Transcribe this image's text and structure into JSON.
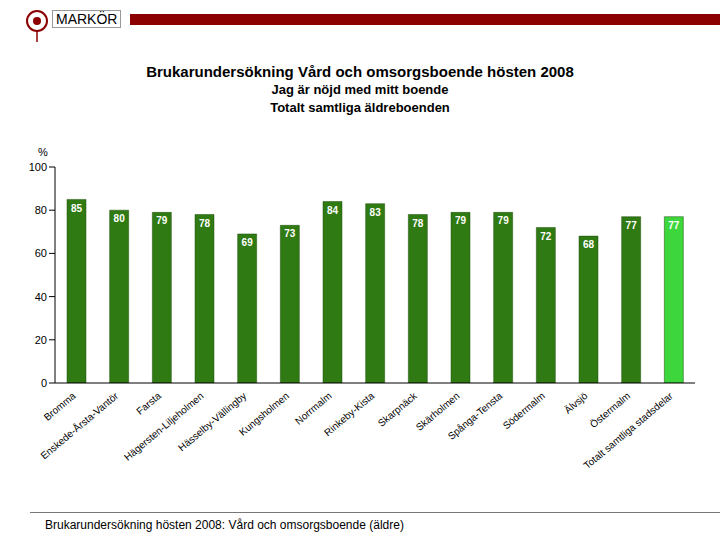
{
  "header": {
    "logo": "MARKÖR"
  },
  "footer": "Brukarundersökning hösten 2008: Vård och omsorgsboende (äldre)",
  "chart_data": {
    "type": "bar",
    "title": "Brukarundersökning Vård och omsorgsboende hösten 2008",
    "subtitle": [
      "Jag är nöjd med mitt boende",
      "Totalt samtliga äldreboenden"
    ],
    "y_label": "%",
    "categories": [
      "Bromma",
      "Enskede-Årsta-Vantör",
      "Farsta",
      "Hägersten-Liljeholmen",
      "Hässelby-Vällingby",
      "Kungsholmen",
      "Norrmalm",
      "Rinkeby-Kista",
      "Skarpnäck",
      "Skärholmen",
      "Spånga-Tensta",
      "Södermalm",
      "Älvsjö",
      "Östermalm",
      "Totalt samtliga stadsdelar"
    ],
    "values": [
      85,
      80,
      79,
      78,
      69,
      73,
      84,
      83,
      78,
      79,
      79,
      72,
      68,
      77,
      77
    ],
    "colors": [
      "#2f7a12",
      "#2f7a12",
      "#2f7a12",
      "#2f7a12",
      "#2f7a12",
      "#2f7a12",
      "#2f7a12",
      "#2f7a12",
      "#2f7a12",
      "#2f7a12",
      "#2f7a12",
      "#2f7a12",
      "#2f7a12",
      "#2f7a12",
      "#3dd63d"
    ],
    "ylim": [
      0,
      100
    ],
    "yticks": [
      0,
      20,
      40,
      60,
      80,
      100
    ],
    "grid": false,
    "data_labels": true
  }
}
